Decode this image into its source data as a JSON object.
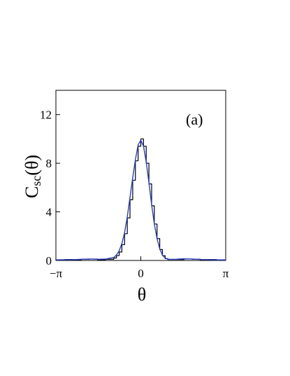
{
  "chart_data": {
    "type": "line",
    "panel_label": "(a)",
    "xlabel": "θ",
    "ylabel": {
      "main": "C",
      "sub": "sc",
      "arg": "(θ)"
    },
    "xlim": [
      -3.14159,
      3.14159
    ],
    "ylim": [
      0,
      14
    ],
    "x_ticks": [
      {
        "value": -3.14159,
        "label": "−π"
      },
      {
        "value": 0,
        "label": "0"
      },
      {
        "value": 3.14159,
        "label": "π"
      }
    ],
    "y_ticks": [
      {
        "value": 0,
        "label": "0"
      },
      {
        "value": 4,
        "label": "4"
      },
      {
        "value": 8,
        "label": "8"
      },
      {
        "value": 12,
        "label": "12"
      }
    ],
    "grid": false,
    "series": [
      {
        "style": "step",
        "color": "#000000",
        "x": [
          -3.14,
          -2.8,
          -2.5,
          -2.2,
          -1.9,
          -1.6,
          -1.3,
          -1.0,
          -0.9,
          -0.8,
          -0.7,
          -0.6,
          -0.5,
          -0.4,
          -0.3,
          -0.2,
          -0.1,
          0.0,
          0.1,
          0.2,
          0.3,
          0.4,
          0.5,
          0.6,
          0.7,
          0.8,
          0.9,
          1.0,
          1.3,
          1.6,
          1.9,
          2.2,
          2.5,
          2.8,
          3.14
        ],
        "y": [
          0.05,
          0.08,
          0.05,
          0.1,
          0.12,
          0.05,
          0.1,
          0.2,
          0.4,
          0.7,
          1.3,
          2.2,
          3.5,
          5.0,
          6.6,
          8.2,
          9.4,
          10.0,
          9.4,
          8.0,
          6.3,
          4.5,
          3.0,
          1.8,
          0.9,
          0.4,
          0.15,
          0.08,
          0.08,
          0.12,
          0.1,
          0.06,
          0.08,
          0.05,
          0.05
        ]
      },
      {
        "style": "smooth",
        "color": "#2b3fc4",
        "x": [
          -3.14,
          -2.8,
          -2.5,
          -2.2,
          -1.9,
          -1.6,
          -1.3,
          -1.0,
          -0.9,
          -0.8,
          -0.7,
          -0.6,
          -0.5,
          -0.4,
          -0.3,
          -0.2,
          -0.1,
          0.0,
          0.1,
          0.2,
          0.3,
          0.4,
          0.5,
          0.6,
          0.7,
          0.8,
          0.9,
          1.0,
          1.3,
          1.6,
          1.9,
          2.2,
          2.5,
          2.8,
          3.14
        ],
        "y": [
          0.05,
          0.06,
          0.07,
          0.1,
          0.12,
          0.1,
          0.12,
          0.25,
          0.45,
          0.8,
          1.4,
          2.3,
          3.6,
          5.2,
          6.8,
          8.3,
          9.5,
          9.9,
          9.4,
          8.1,
          6.4,
          4.6,
          3.0,
          1.8,
          0.95,
          0.45,
          0.2,
          0.1,
          0.1,
          0.14,
          0.12,
          0.08,
          0.07,
          0.05,
          0.05
        ]
      }
    ]
  }
}
